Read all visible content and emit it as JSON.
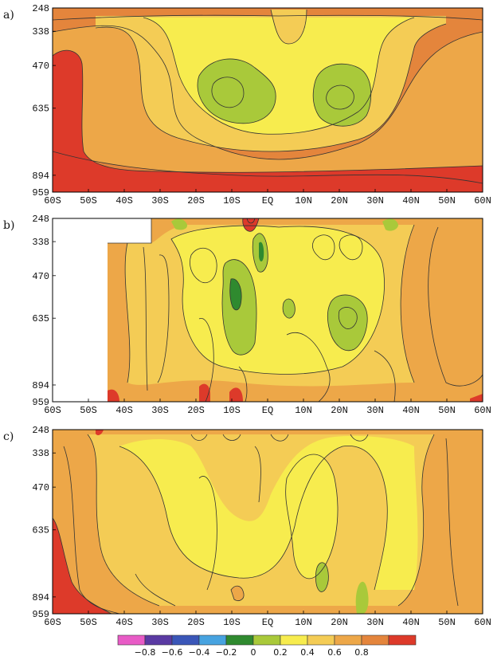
{
  "chart_data": [
    {
      "type": "heatmap",
      "panel_label": "a)",
      "x_ticks": [
        "60S",
        "50S",
        "40S",
        "30S",
        "20S",
        "10S",
        "EQ",
        "10N",
        "20N",
        "30N",
        "40N",
        "50N",
        "60N"
      ],
      "y_ticks": [
        "248",
        "338",
        "470",
        "635",
        "894",
        "959"
      ],
      "y_values": [
        248,
        338,
        470,
        635,
        894,
        959
      ],
      "xlim": [
        -60,
        60
      ],
      "ylim": [
        959,
        248
      ],
      "colors": {
        "red": "#dd3a2a",
        "dark_orange": "#e4853c",
        "orange": "#eda748",
        "light_orange": "#f4cc55",
        "yellow": "#f7ec4e",
        "light_green": "#a9c93a"
      },
      "features": [
        {
          "kind": "minimum",
          "lat": -10,
          "p": 600,
          "level": 0.2
        },
        {
          "kind": "minimum",
          "lat": 20,
          "p": 600,
          "level": 0.2
        },
        {
          "kind": "maximum",
          "lat": -60,
          "p": 800,
          "level": 0.8
        }
      ]
    },
    {
      "type": "heatmap",
      "panel_label": "b)",
      "x_ticks": [
        "60S",
        "50S",
        "40S",
        "30S",
        "20S",
        "10S",
        "EQ",
        "10N",
        "20N",
        "30N",
        "40N",
        "50N",
        "60N"
      ],
      "y_ticks": [
        "248",
        "338",
        "470",
        "635",
        "894",
        "959"
      ],
      "y_values": [
        248,
        338,
        470,
        635,
        894,
        959
      ],
      "xlim": [
        -60,
        60
      ],
      "ylim": [
        959,
        248
      ],
      "features": [
        {
          "kind": "minimum",
          "lat": -10,
          "p": 560,
          "level": 0.0
        },
        {
          "kind": "minimum",
          "lat": -3,
          "p": 340,
          "level": 0.0
        },
        {
          "kind": "minimum",
          "lat": 20,
          "p": 620,
          "level": 0.2
        },
        {
          "kind": "maximum",
          "lat": -5,
          "p": 248,
          "level": 0.8
        },
        {
          "kind": "maximum",
          "lat": -10,
          "p": 959,
          "level": 0.8
        }
      ]
    },
    {
      "type": "heatmap",
      "panel_label": "c)",
      "x_ticks": [
        "60S",
        "50S",
        "40S",
        "30S",
        "20S",
        "10S",
        "EQ",
        "10N",
        "20N",
        "30N",
        "40N",
        "50N",
        "60N"
      ],
      "y_ticks": [
        "248",
        "338",
        "470",
        "635",
        "894",
        "959"
      ],
      "y_values": [
        248,
        338,
        470,
        635,
        894,
        959
      ],
      "xlim": [
        -60,
        60
      ],
      "ylim": [
        959,
        248
      ],
      "features": [
        {
          "kind": "minimum",
          "lat": 17,
          "p": 880,
          "level": 0.2
        },
        {
          "kind": "maximum",
          "lat": -60,
          "p": 920,
          "level": 0.8
        }
      ]
    }
  ],
  "colorbar": {
    "colors": [
      "#e85bc6",
      "#5a3aa3",
      "#3a56b8",
      "#47a3e0",
      "#2f8a2f",
      "#a9c93a",
      "#f7ec4e",
      "#f4cc55",
      "#eda748",
      "#e4853c",
      "#dd3a2a"
    ],
    "labels": [
      "-0.8",
      "-0.6",
      "-0.4",
      "-0.2",
      "0",
      "0.2",
      "0.4",
      "0.6",
      "0.8"
    ]
  }
}
